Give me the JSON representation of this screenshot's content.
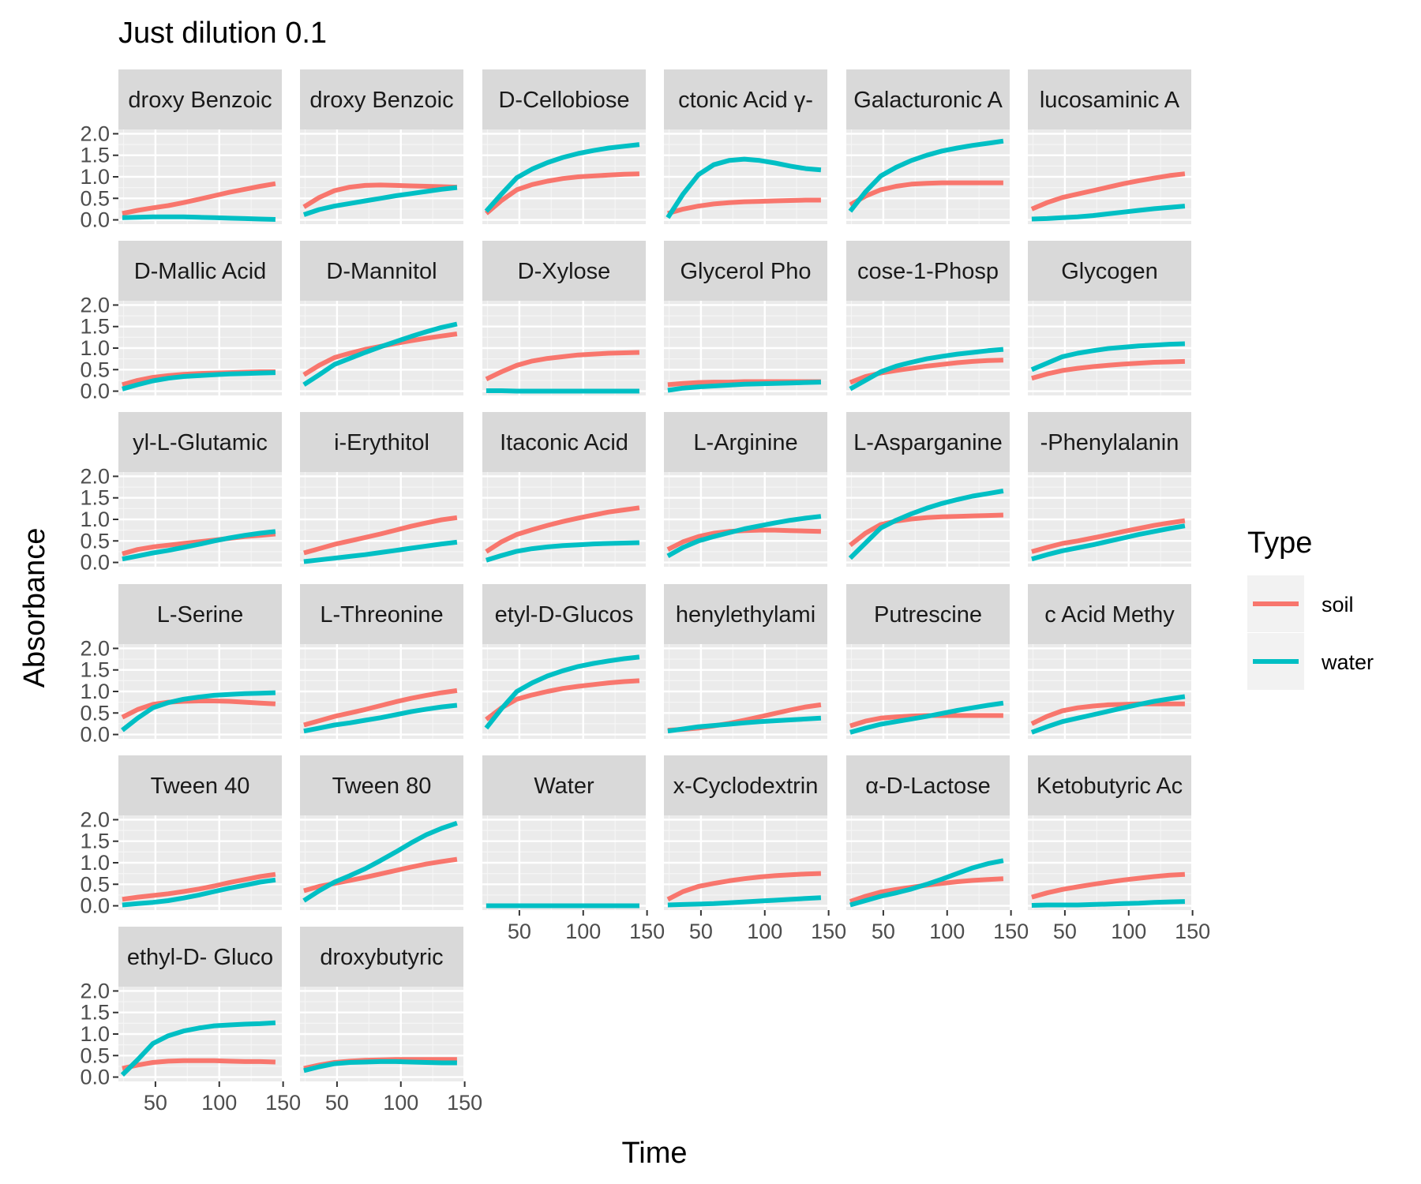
{
  "chart_data": {
    "type": "line",
    "title": "Just dilution 0.1",
    "xlabel": "Time",
    "ylabel": "Absorbance",
    "xlim": [
      21,
      149
    ],
    "ylim": [
      -0.1,
      2.1
    ],
    "x_ticks": [
      50,
      100,
      150
    ],
    "y_ticks": [
      "0.0",
      "0.5",
      "1.0",
      "1.5",
      "2.0"
    ],
    "grid": true,
    "legend": {
      "title": "Type",
      "position": "right",
      "entries": [
        {
          "name": "soil",
          "color": "#F8766D"
        },
        {
          "name": "water",
          "color": "#00BFC4"
        }
      ]
    },
    "x": [
      24,
      36,
      48,
      60,
      72,
      84,
      96,
      108,
      120,
      132,
      144
    ],
    "panels": [
      {
        "label": "droxy Benzoic",
        "soil": [
          0.15,
          0.22,
          0.28,
          0.33,
          0.4,
          0.48,
          0.56,
          0.64,
          0.71,
          0.78,
          0.84
        ],
        "water": [
          0.05,
          0.06,
          0.07,
          0.07,
          0.07,
          0.06,
          0.05,
          0.04,
          0.03,
          0.02,
          0.01
        ]
      },
      {
        "label": "droxy Benzoic",
        "soil": [
          0.3,
          0.52,
          0.68,
          0.76,
          0.8,
          0.81,
          0.8,
          0.79,
          0.78,
          0.77,
          0.76
        ],
        "water": [
          0.12,
          0.24,
          0.32,
          0.38,
          0.44,
          0.5,
          0.56,
          0.61,
          0.66,
          0.71,
          0.75
        ]
      },
      {
        "label": "D-Cellobiose",
        "soil": [
          0.15,
          0.45,
          0.7,
          0.82,
          0.9,
          0.96,
          1.0,
          1.02,
          1.04,
          1.06,
          1.07
        ],
        "water": [
          0.2,
          0.6,
          0.98,
          1.18,
          1.33,
          1.45,
          1.54,
          1.61,
          1.67,
          1.71,
          1.75
        ]
      },
      {
        "label": "ctonic Acid γ-",
        "soil": [
          0.15,
          0.25,
          0.32,
          0.37,
          0.4,
          0.42,
          0.43,
          0.44,
          0.45,
          0.46,
          0.46
        ],
        "water": [
          0.05,
          0.6,
          1.05,
          1.28,
          1.38,
          1.41,
          1.38,
          1.32,
          1.25,
          1.19,
          1.16
        ]
      },
      {
        "label": "Galacturonic A",
        "soil": [
          0.35,
          0.55,
          0.7,
          0.78,
          0.83,
          0.85,
          0.86,
          0.86,
          0.86,
          0.86,
          0.86
        ],
        "water": [
          0.2,
          0.65,
          1.02,
          1.22,
          1.38,
          1.5,
          1.6,
          1.67,
          1.73,
          1.78,
          1.83
        ]
      },
      {
        "label": "lucosaminic A",
        "soil": [
          0.25,
          0.4,
          0.52,
          0.6,
          0.68,
          0.76,
          0.84,
          0.91,
          0.97,
          1.03,
          1.07
        ],
        "water": [
          0.02,
          0.03,
          0.05,
          0.07,
          0.1,
          0.14,
          0.18,
          0.22,
          0.26,
          0.29,
          0.32
        ]
      },
      {
        "label": "D-Mallic Acid",
        "soil": [
          0.15,
          0.25,
          0.32,
          0.36,
          0.39,
          0.41,
          0.42,
          0.43,
          0.44,
          0.45,
          0.45
        ],
        "water": [
          0.05,
          0.15,
          0.24,
          0.3,
          0.34,
          0.36,
          0.38,
          0.4,
          0.41,
          0.42,
          0.43
        ]
      },
      {
        "label": "D-Mannitol",
        "soil": [
          0.38,
          0.6,
          0.78,
          0.88,
          0.97,
          1.04,
          1.11,
          1.17,
          1.23,
          1.28,
          1.33
        ],
        "water": [
          0.15,
          0.38,
          0.62,
          0.76,
          0.9,
          1.03,
          1.15,
          1.27,
          1.38,
          1.48,
          1.56
        ]
      },
      {
        "label": "D-Xylose",
        "soil": [
          0.28,
          0.45,
          0.6,
          0.7,
          0.76,
          0.8,
          0.84,
          0.86,
          0.88,
          0.89,
          0.9
        ],
        "water": [
          0.01,
          0.01,
          0.0,
          0.0,
          0.0,
          0.0,
          0.0,
          0.0,
          0.0,
          0.0,
          0.0
        ]
      },
      {
        "label": "Glycerol Pho",
        "soil": [
          0.15,
          0.18,
          0.2,
          0.21,
          0.21,
          0.22,
          0.22,
          0.22,
          0.22,
          0.22,
          0.22
        ],
        "water": [
          0.02,
          0.07,
          0.1,
          0.12,
          0.14,
          0.16,
          0.17,
          0.18,
          0.19,
          0.2,
          0.21
        ]
      },
      {
        "label": "cose-1-Phosp",
        "soil": [
          0.2,
          0.34,
          0.42,
          0.48,
          0.53,
          0.58,
          0.62,
          0.66,
          0.69,
          0.71,
          0.72
        ],
        "water": [
          0.05,
          0.25,
          0.45,
          0.58,
          0.67,
          0.75,
          0.81,
          0.86,
          0.9,
          0.94,
          0.97
        ]
      },
      {
        "label": "Glycogen",
        "soil": [
          0.3,
          0.4,
          0.48,
          0.53,
          0.57,
          0.6,
          0.63,
          0.65,
          0.67,
          0.68,
          0.69
        ],
        "water": [
          0.5,
          0.65,
          0.8,
          0.88,
          0.94,
          0.99,
          1.02,
          1.05,
          1.07,
          1.09,
          1.1
        ]
      },
      {
        "label": "yl-L-Glutamic",
        "soil": [
          0.2,
          0.3,
          0.36,
          0.4,
          0.44,
          0.48,
          0.52,
          0.56,
          0.6,
          0.63,
          0.66
        ],
        "water": [
          0.08,
          0.15,
          0.22,
          0.28,
          0.35,
          0.42,
          0.5,
          0.57,
          0.63,
          0.68,
          0.72
        ]
      },
      {
        "label": "i-Erythitol",
        "soil": [
          0.22,
          0.32,
          0.42,
          0.5,
          0.58,
          0.66,
          0.75,
          0.84,
          0.92,
          0.99,
          1.04
        ],
        "water": [
          0.02,
          0.06,
          0.1,
          0.14,
          0.18,
          0.23,
          0.28,
          0.33,
          0.38,
          0.43,
          0.47
        ]
      },
      {
        "label": "Itaconic Acid",
        "soil": [
          0.25,
          0.48,
          0.65,
          0.76,
          0.86,
          0.95,
          1.03,
          1.1,
          1.17,
          1.22,
          1.27
        ],
        "water": [
          0.05,
          0.16,
          0.26,
          0.32,
          0.36,
          0.39,
          0.41,
          0.43,
          0.44,
          0.45,
          0.46
        ]
      },
      {
        "label": "L-Arginine",
        "soil": [
          0.3,
          0.48,
          0.6,
          0.68,
          0.72,
          0.74,
          0.75,
          0.75,
          0.74,
          0.73,
          0.72
        ],
        "water": [
          0.15,
          0.35,
          0.5,
          0.6,
          0.69,
          0.78,
          0.85,
          0.92,
          0.98,
          1.03,
          1.07
        ]
      },
      {
        "label": "L-Asparganine",
        "soil": [
          0.4,
          0.68,
          0.88,
          0.96,
          1.01,
          1.04,
          1.06,
          1.07,
          1.08,
          1.09,
          1.1
        ],
        "water": [
          0.1,
          0.45,
          0.8,
          0.98,
          1.13,
          1.26,
          1.37,
          1.46,
          1.54,
          1.6,
          1.66
        ]
      },
      {
        "label": "-Phenylalanin",
        "soil": [
          0.25,
          0.35,
          0.44,
          0.5,
          0.57,
          0.64,
          0.72,
          0.79,
          0.86,
          0.92,
          0.97
        ],
        "water": [
          0.08,
          0.18,
          0.27,
          0.34,
          0.41,
          0.49,
          0.57,
          0.65,
          0.72,
          0.79,
          0.85
        ]
      },
      {
        "label": "L-Serine",
        "soil": [
          0.4,
          0.58,
          0.7,
          0.75,
          0.77,
          0.78,
          0.78,
          0.77,
          0.75,
          0.73,
          0.71
        ],
        "water": [
          0.1,
          0.38,
          0.62,
          0.74,
          0.82,
          0.87,
          0.91,
          0.93,
          0.95,
          0.96,
          0.97
        ]
      },
      {
        "label": "L-Threonine",
        "soil": [
          0.22,
          0.32,
          0.42,
          0.5,
          0.58,
          0.67,
          0.76,
          0.84,
          0.91,
          0.97,
          1.02
        ],
        "water": [
          0.08,
          0.15,
          0.22,
          0.27,
          0.33,
          0.39,
          0.46,
          0.53,
          0.59,
          0.64,
          0.68
        ]
      },
      {
        "label": "etyl-D-Glucos",
        "soil": [
          0.35,
          0.62,
          0.82,
          0.92,
          1.0,
          1.07,
          1.12,
          1.16,
          1.2,
          1.23,
          1.25
        ],
        "water": [
          0.15,
          0.6,
          1.0,
          1.2,
          1.36,
          1.48,
          1.58,
          1.65,
          1.71,
          1.76,
          1.8
        ]
      },
      {
        "label": "henylethylami",
        "soil": [
          0.1,
          0.12,
          0.15,
          0.2,
          0.26,
          0.33,
          0.41,
          0.49,
          0.57,
          0.64,
          0.69
        ],
        "water": [
          0.08,
          0.13,
          0.18,
          0.21,
          0.24,
          0.27,
          0.3,
          0.32,
          0.34,
          0.36,
          0.38
        ]
      },
      {
        "label": "Putrescine",
        "soil": [
          0.2,
          0.31,
          0.38,
          0.41,
          0.43,
          0.44,
          0.44,
          0.44,
          0.44,
          0.44,
          0.44
        ],
        "water": [
          0.05,
          0.15,
          0.24,
          0.3,
          0.36,
          0.42,
          0.49,
          0.56,
          0.62,
          0.68,
          0.73
        ]
      },
      {
        "label": "c Acid Methy",
        "soil": [
          0.25,
          0.42,
          0.55,
          0.62,
          0.66,
          0.69,
          0.7,
          0.71,
          0.71,
          0.71,
          0.71
        ],
        "water": [
          0.05,
          0.18,
          0.3,
          0.38,
          0.46,
          0.54,
          0.62,
          0.7,
          0.77,
          0.83,
          0.88
        ]
      },
      {
        "label": "Tween 40",
        "soil": [
          0.15,
          0.2,
          0.24,
          0.28,
          0.33,
          0.39,
          0.46,
          0.54,
          0.61,
          0.68,
          0.73
        ],
        "water": [
          0.02,
          0.05,
          0.08,
          0.12,
          0.18,
          0.25,
          0.33,
          0.41,
          0.48,
          0.55,
          0.6
        ]
      },
      {
        "label": "Tween 80",
        "soil": [
          0.35,
          0.45,
          0.52,
          0.59,
          0.66,
          0.74,
          0.82,
          0.9,
          0.97,
          1.03,
          1.08
        ],
        "water": [
          0.12,
          0.35,
          0.55,
          0.7,
          0.86,
          1.05,
          1.25,
          1.46,
          1.65,
          1.8,
          1.92
        ]
      },
      {
        "label": "Water",
        "soil": [
          0.0,
          0.0,
          0.0,
          0.0,
          0.0,
          0.0,
          0.0,
          0.0,
          0.0,
          0.0,
          0.0
        ],
        "water": [
          0.0,
          0.0,
          0.0,
          0.0,
          0.0,
          0.0,
          0.0,
          0.0,
          0.0,
          0.0,
          0.0
        ]
      },
      {
        "label": "x-Cyclodextrin",
        "soil": [
          0.15,
          0.33,
          0.45,
          0.52,
          0.58,
          0.63,
          0.67,
          0.7,
          0.72,
          0.74,
          0.75
        ],
        "water": [
          0.02,
          0.03,
          0.04,
          0.05,
          0.07,
          0.09,
          0.11,
          0.13,
          0.15,
          0.17,
          0.19
        ]
      },
      {
        "label": "α-D-Lactose",
        "soil": [
          0.1,
          0.22,
          0.32,
          0.38,
          0.43,
          0.48,
          0.52,
          0.56,
          0.59,
          0.61,
          0.63
        ],
        "water": [
          0.02,
          0.12,
          0.22,
          0.3,
          0.39,
          0.5,
          0.62,
          0.75,
          0.88,
          0.98,
          1.05
        ]
      },
      {
        "label": "Ketobutyric Ac",
        "soil": [
          0.2,
          0.3,
          0.38,
          0.44,
          0.5,
          0.55,
          0.6,
          0.64,
          0.68,
          0.71,
          0.73
        ],
        "water": [
          0.01,
          0.02,
          0.02,
          0.02,
          0.03,
          0.04,
          0.05,
          0.06,
          0.08,
          0.09,
          0.1
        ]
      },
      {
        "label": "ethyl-D- Gluco",
        "soil": [
          0.2,
          0.28,
          0.34,
          0.37,
          0.38,
          0.38,
          0.38,
          0.37,
          0.36,
          0.36,
          0.35
        ],
        "water": [
          0.05,
          0.4,
          0.78,
          0.96,
          1.07,
          1.14,
          1.19,
          1.21,
          1.23,
          1.24,
          1.26
        ]
      },
      {
        "label": "droxybutyric",
        "soil": [
          0.2,
          0.28,
          0.34,
          0.37,
          0.39,
          0.4,
          0.41,
          0.41,
          0.41,
          0.41,
          0.41
        ],
        "water": [
          0.15,
          0.24,
          0.31,
          0.34,
          0.35,
          0.36,
          0.36,
          0.35,
          0.34,
          0.33,
          0.33
        ]
      }
    ]
  }
}
